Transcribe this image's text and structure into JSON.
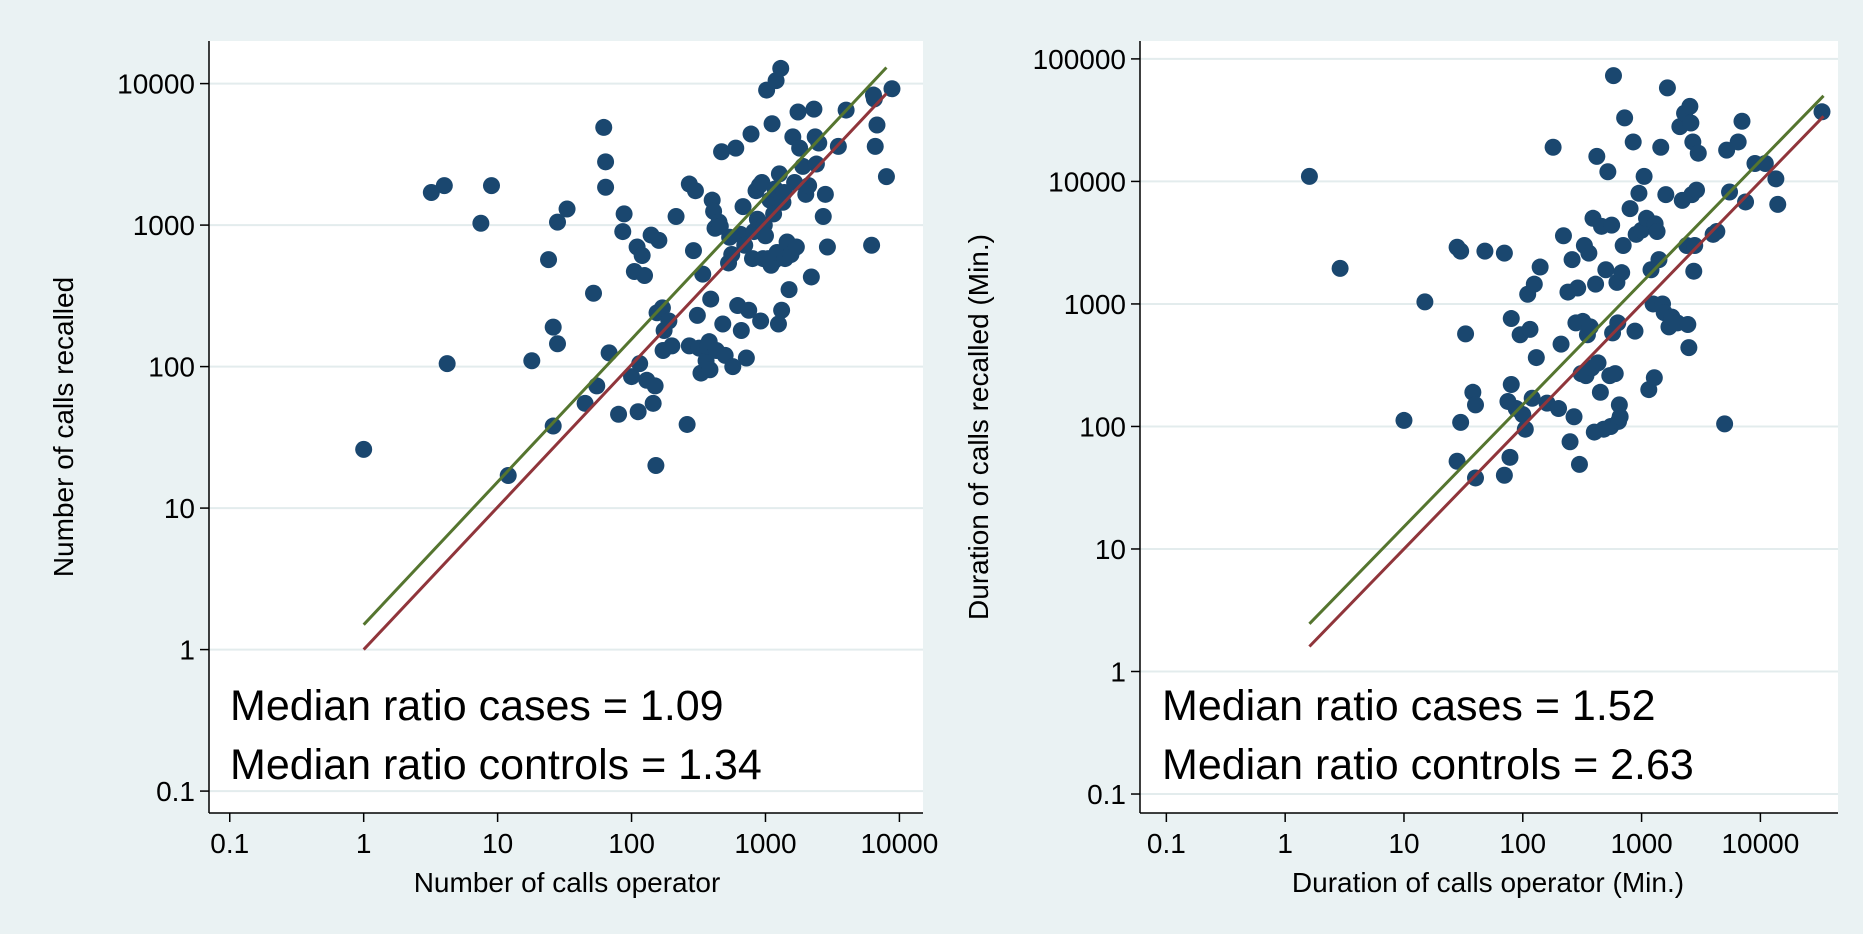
{
  "colors": {
    "outer_background": "#eaf2f3",
    "plot_background": "#ffffff",
    "gridline": "#e3eced",
    "marker": "#1a476f",
    "line_cases": "#90353b",
    "line_controls": "#55752f"
  },
  "chart_data": [
    {
      "type": "scatter",
      "xlabel": "Number of calls operator",
      "ylabel": "Number of calls recalled",
      "x_scale": "log",
      "y_scale": "log",
      "xlim": [
        0.07,
        15000
      ],
      "ylim": [
        0.07,
        20000
      ],
      "x_ticks": [
        0.1,
        1,
        10,
        100,
        1000,
        10000
      ],
      "x_tick_labels": [
        "0.1",
        "1",
        "10",
        "100",
        "1000",
        "10000"
      ],
      "y_ticks": [
        0.1,
        1,
        10,
        100,
        1000,
        10000
      ],
      "y_tick_labels": [
        "0.1",
        "1",
        "10",
        "100",
        "1000",
        "10000"
      ],
      "grid": "horizontal",
      "annotations": [
        "Median ratio cases = 1.09",
        "Median ratio controls = 1.34"
      ],
      "lines": [
        {
          "role": "cases",
          "x": [
            1,
            8000
          ],
          "y": [
            1,
            8500
          ]
        },
        {
          "role": "controls",
          "x": [
            1,
            8000
          ],
          "y": [
            1.5,
            13000
          ]
        }
      ],
      "points": [
        [
          1,
          26
        ],
        [
          3.2,
          1700
        ],
        [
          4,
          1900
        ],
        [
          4.2,
          105
        ],
        [
          7.5,
          1030
        ],
        [
          9,
          1900
        ],
        [
          12,
          17
        ],
        [
          18,
          110
        ],
        [
          24,
          570
        ],
        [
          26,
          190
        ],
        [
          26,
          38
        ],
        [
          28,
          1050
        ],
        [
          28,
          145
        ],
        [
          33,
          1300
        ],
        [
          45,
          55
        ],
        [
          52,
          330
        ],
        [
          55,
          73
        ],
        [
          62,
          4900
        ],
        [
          64,
          2800
        ],
        [
          64,
          1850
        ],
        [
          68,
          125
        ],
        [
          80,
          46
        ],
        [
          86,
          900
        ],
        [
          88,
          1200
        ],
        [
          100,
          85
        ],
        [
          105,
          470
        ],
        [
          110,
          700
        ],
        [
          112,
          48
        ],
        [
          115,
          105
        ],
        [
          120,
          610
        ],
        [
          125,
          440
        ],
        [
          130,
          80
        ],
        [
          140,
          850
        ],
        [
          145,
          55
        ],
        [
          150,
          73
        ],
        [
          152,
          20
        ],
        [
          155,
          240
        ],
        [
          160,
          780
        ],
        [
          170,
          260
        ],
        [
          172,
          130
        ],
        [
          175,
          180
        ],
        [
          190,
          210
        ],
        [
          200,
          140
        ],
        [
          215,
          1150
        ],
        [
          260,
          39
        ],
        [
          270,
          140
        ],
        [
          270,
          1950
        ],
        [
          290,
          660
        ],
        [
          300,
          1750
        ],
        [
          310,
          230
        ],
        [
          320,
          135
        ],
        [
          330,
          90
        ],
        [
          340,
          450
        ],
        [
          350,
          130
        ],
        [
          360,
          110
        ],
        [
          370,
          140
        ],
        [
          380,
          150
        ],
        [
          385,
          95
        ],
        [
          390,
          300
        ],
        [
          400,
          1500
        ],
        [
          410,
          1250
        ],
        [
          420,
          950
        ],
        [
          430,
          130
        ],
        [
          450,
          1050
        ],
        [
          460,
          980
        ],
        [
          470,
          3300
        ],
        [
          480,
          200
        ],
        [
          500,
          120
        ],
        [
          530,
          540
        ],
        [
          540,
          820
        ],
        [
          560,
          620
        ],
        [
          570,
          100
        ],
        [
          600,
          3500
        ],
        [
          620,
          270
        ],
        [
          650,
          860
        ],
        [
          660,
          180
        ],
        [
          680,
          1350
        ],
        [
          700,
          720
        ],
        [
          720,
          115
        ],
        [
          750,
          250
        ],
        [
          780,
          4400
        ],
        [
          800,
          580
        ],
        [
          820,
          900
        ],
        [
          850,
          1750
        ],
        [
          870,
          1100
        ],
        [
          900,
          1900
        ],
        [
          920,
          210
        ],
        [
          940,
          2000
        ],
        [
          960,
          580
        ],
        [
          980,
          1000
        ],
        [
          1000,
          840
        ],
        [
          1020,
          9000
        ],
        [
          1050,
          580
        ],
        [
          1080,
          1500
        ],
        [
          1100,
          520
        ],
        [
          1120,
          5200
        ],
        [
          1150,
          1200
        ],
        [
          1160,
          560
        ],
        [
          1180,
          1800
        ],
        [
          1200,
          10500
        ],
        [
          1220,
          640
        ],
        [
          1250,
          200
        ],
        [
          1270,
          2300
        ],
        [
          1300,
          12800
        ],
        [
          1320,
          250
        ],
        [
          1350,
          1450
        ],
        [
          1380,
          1700
        ],
        [
          1400,
          580
        ],
        [
          1450,
          760
        ],
        [
          1500,
          350
        ],
        [
          1550,
          620
        ],
        [
          1600,
          4200
        ],
        [
          1650,
          2000
        ],
        [
          1700,
          700
        ],
        [
          1750,
          6300
        ],
        [
          1800,
          3500
        ],
        [
          1900,
          2600
        ],
        [
          2000,
          1650
        ],
        [
          2100,
          1900
        ],
        [
          2200,
          430
        ],
        [
          2300,
          6600
        ],
        [
          2350,
          4200
        ],
        [
          2400,
          2700
        ],
        [
          2500,
          3800
        ],
        [
          2700,
          1150
        ],
        [
          2800,
          1650
        ],
        [
          2900,
          700
        ],
        [
          3500,
          3600
        ],
        [
          4000,
          6500
        ],
        [
          6200,
          720
        ],
        [
          6500,
          7800
        ],
        [
          6600,
          3600
        ],
        [
          6800,
          5100
        ],
        [
          8000,
          2200
        ],
        [
          8800,
          9200
        ],
        [
          6400,
          8300
        ]
      ]
    },
    {
      "type": "scatter",
      "xlabel": "Duration of calls operator (Min.)",
      "ylabel": "Duration of calls recalled (Min.)",
      "x_scale": "log",
      "y_scale": "log",
      "xlim": [
        0.06,
        45000
      ],
      "ylim": [
        0.07,
        140000
      ],
      "x_ticks": [
        0.1,
        1,
        10,
        100,
        1000,
        10000
      ],
      "x_tick_labels": [
        "0.1",
        "1",
        "10",
        "100",
        "1000",
        "10000"
      ],
      "y_ticks": [
        0.1,
        1,
        10,
        100,
        1000,
        10000,
        100000
      ],
      "y_tick_labels": [
        "0.1",
        "1",
        "10",
        "100",
        "1000",
        "10000",
        "100000"
      ],
      "grid": "horizontal",
      "annotations": [
        "Median ratio cases = 1.52",
        "Median ratio controls = 2.63"
      ],
      "lines": [
        {
          "role": "cases",
          "x": [
            1.6,
            34000
          ],
          "y": [
            1.6,
            34000
          ]
        },
        {
          "role": "controls",
          "x": [
            1.6,
            34000
          ],
          "y": [
            2.45,
            50000
          ]
        }
      ],
      "points": [
        [
          1.6,
          11000
        ],
        [
          2.9,
          1950
        ],
        [
          10,
          112
        ],
        [
          15,
          1040
        ],
        [
          28,
          52
        ],
        [
          28,
          2900
        ],
        [
          30,
          2700
        ],
        [
          30,
          108
        ],
        [
          33,
          570
        ],
        [
          38,
          190
        ],
        [
          40,
          38
        ],
        [
          40,
          150
        ],
        [
          48,
          2700
        ],
        [
          70,
          2600
        ],
        [
          70,
          40
        ],
        [
          75,
          160
        ],
        [
          78,
          56
        ],
        [
          80,
          760
        ],
        [
          80,
          220
        ],
        [
          88,
          140
        ],
        [
          95,
          560
        ],
        [
          100,
          125
        ],
        [
          105,
          95
        ],
        [
          110,
          1200
        ],
        [
          115,
          620
        ],
        [
          120,
          170
        ],
        [
          125,
          1450
        ],
        [
          130,
          365
        ],
        [
          140,
          2000
        ],
        [
          160,
          155
        ],
        [
          180,
          19000
        ],
        [
          200,
          140
        ],
        [
          210,
          470
        ],
        [
          220,
          3600
        ],
        [
          240,
          1250
        ],
        [
          250,
          75
        ],
        [
          260,
          2300
        ],
        [
          270,
          120
        ],
        [
          280,
          700
        ],
        [
          290,
          1350
        ],
        [
          300,
          49
        ],
        [
          310,
          270
        ],
        [
          320,
          720
        ],
        [
          330,
          3000
        ],
        [
          340,
          260
        ],
        [
          350,
          560
        ],
        [
          360,
          2600
        ],
        [
          370,
          650
        ],
        [
          380,
          300
        ],
        [
          390,
          5000
        ],
        [
          400,
          90
        ],
        [
          410,
          1450
        ],
        [
          420,
          16000
        ],
        [
          430,
          330
        ],
        [
          450,
          190
        ],
        [
          460,
          4300
        ],
        [
          480,
          95
        ],
        [
          500,
          1900
        ],
        [
          520,
          12000
        ],
        [
          540,
          260
        ],
        [
          550,
          100
        ],
        [
          560,
          4400
        ],
        [
          570,
          580
        ],
        [
          580,
          73000
        ],
        [
          600,
          270
        ],
        [
          620,
          1500
        ],
        [
          630,
          700
        ],
        [
          640,
          110
        ],
        [
          650,
          150
        ],
        [
          660,
          120
        ],
        [
          680,
          1800
        ],
        [
          700,
          3000
        ],
        [
          720,
          33000
        ],
        [
          800,
          6000
        ],
        [
          850,
          21000
        ],
        [
          880,
          600
        ],
        [
          900,
          3700
        ],
        [
          950,
          8000
        ],
        [
          1000,
          4000
        ],
        [
          1050,
          11000
        ],
        [
          1100,
          5000
        ],
        [
          1150,
          200
        ],
        [
          1200,
          1900
        ],
        [
          1250,
          1000
        ],
        [
          1280,
          250
        ],
        [
          1300,
          4500
        ],
        [
          1350,
          3900
        ],
        [
          1400,
          2300
        ],
        [
          1450,
          19000
        ],
        [
          1500,
          1000
        ],
        [
          1550,
          850
        ],
        [
          1600,
          7800
        ],
        [
          1650,
          58000
        ],
        [
          1700,
          650
        ],
        [
          1800,
          780
        ],
        [
          2000,
          700
        ],
        [
          2100,
          28000
        ],
        [
          2200,
          7000
        ],
        [
          2300,
          36000
        ],
        [
          2400,
          3000
        ],
        [
          2450,
          680
        ],
        [
          2500,
          440
        ],
        [
          2550,
          41000
        ],
        [
          2600,
          30000
        ],
        [
          2650,
          7800
        ],
        [
          2700,
          21000
        ],
        [
          2750,
          1850
        ],
        [
          2800,
          3000
        ],
        [
          2900,
          8500
        ],
        [
          3000,
          17000
        ],
        [
          4000,
          3700
        ],
        [
          4300,
          3900
        ],
        [
          5000,
          105
        ],
        [
          5200,
          18000
        ],
        [
          5500,
          8200
        ],
        [
          6500,
          21000
        ],
        [
          7000,
          31000
        ],
        [
          7500,
          6800
        ],
        [
          9000,
          14000
        ],
        [
          11000,
          14000
        ],
        [
          13500,
          10500
        ],
        [
          14000,
          6500
        ],
        [
          33000,
          37000
        ]
      ]
    }
  ]
}
